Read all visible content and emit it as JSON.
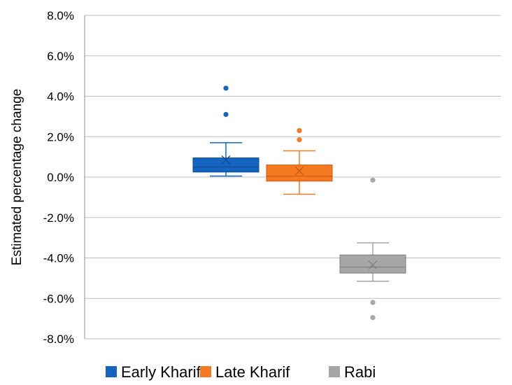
{
  "chart_data": {
    "type": "box",
    "ylabel": "Estimated percentage change",
    "ylim": [
      -8.0,
      8.0
    ],
    "yticks": [
      8.0,
      6.0,
      4.0,
      2.0,
      0.0,
      -2.0,
      -4.0,
      -6.0,
      -8.0
    ],
    "ytick_labels": [
      "8.0%",
      "6.0%",
      "4.0%",
      "2.0%",
      "0.0%",
      "-2.0%",
      "-4.0%",
      "-6.0%",
      "-8.0%"
    ],
    "grid": true,
    "legend_position": "bottom",
    "series": [
      {
        "name": "Early Kharif",
        "color": "#1565C0",
        "edge": "#0D4A91",
        "whisker_min": 0.05,
        "q1": 0.25,
        "median": 0.5,
        "q3": 0.95,
        "whisker_max": 1.7,
        "mean": 0.85,
        "outliers": [
          4.4,
          3.1
        ]
      },
      {
        "name": "Late Kharif",
        "color": "#F47920",
        "edge": "#C85A0C",
        "whisker_min": -0.85,
        "q1": -0.2,
        "median": 0.05,
        "q3": 0.6,
        "whisker_max": 1.3,
        "mean": 0.3,
        "outliers": [
          2.3,
          1.85
        ]
      },
      {
        "name": "Rabi",
        "color": "#A6A6A6",
        "edge": "#7F7F7F",
        "whisker_min": -5.15,
        "q1": -4.75,
        "median": -4.45,
        "q3": -3.85,
        "whisker_max": -3.25,
        "mean": -4.35,
        "outliers": [
          -0.15,
          -6.2,
          -6.95
        ]
      }
    ]
  }
}
